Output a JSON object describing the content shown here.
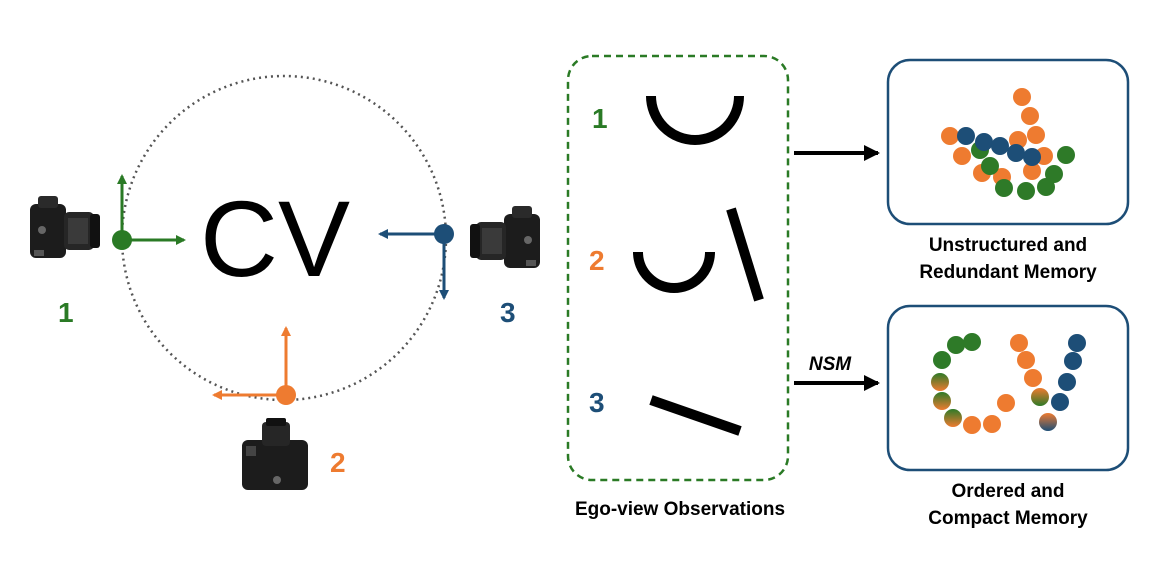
{
  "colors": {
    "green": "#2a7a25",
    "orange": "#ee7b30",
    "blue": "#1d4e77",
    "dots_green": "#2e7a28",
    "dots_orange": "#ee7b30",
    "dots_blue": "#1d4e77"
  },
  "scene": {
    "target_text": "CV",
    "cameras": [
      {
        "label": "1",
        "color_key": "green"
      },
      {
        "label": "2",
        "color_key": "orange"
      },
      {
        "label": "3",
        "color_key": "blue"
      }
    ]
  },
  "observations": {
    "caption": "Ego-view Observations",
    "labels": [
      "1",
      "2",
      "3"
    ]
  },
  "memory": {
    "top_caption_line1": "Unstructured and",
    "top_caption_line2": "Redundant Memory",
    "bottom_caption_line1": "Ordered and",
    "bottom_caption_line2": "Compact Memory",
    "arrow_label": "NSM"
  },
  "icons": [
    "camera-icon",
    "arrow-icon"
  ]
}
